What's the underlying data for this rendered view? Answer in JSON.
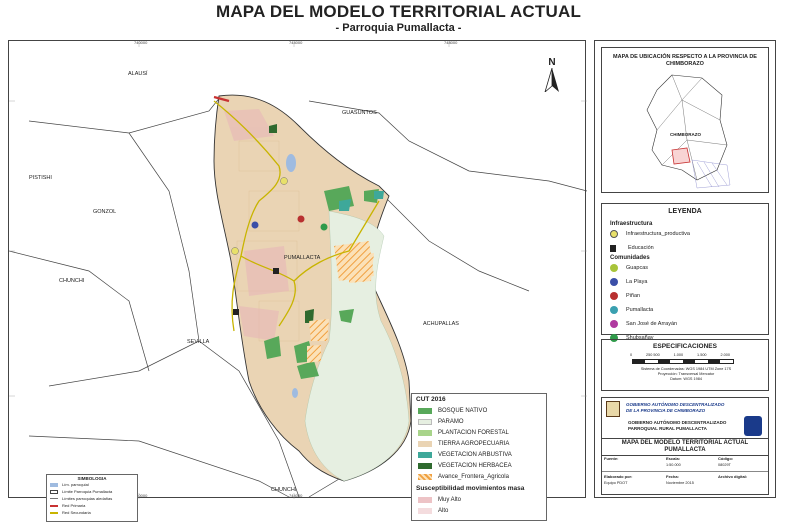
{
  "header": {
    "title": "MAPA DEL MODELO TERRITORIAL ACTUAL",
    "subtitle": "- Parroquia Pumallacta -"
  },
  "map": {
    "places": [
      "ALAUSÍ",
      "GUASUNTOS",
      "GONZOL",
      "CHUNCHI",
      "SEVILLA",
      "ACHUPALLAS",
      "PISTISHI",
      "PUMALLACTA",
      "CHUNCHI"
    ],
    "north_label": "N",
    "top_coords": [
      "740000",
      "744000",
      "748000"
    ],
    "bottom_coords": [
      "740000",
      "744000",
      "748000"
    ],
    "colors": {
      "agro": "#ead4b4",
      "paramo": "#e6efe1",
      "forest": "#58a85a",
      "herb": "#2f6a2f",
      "shrub": "#3ea89a",
      "avance": "#f0a040",
      "mrisk": "#e8b4b8",
      "road": "#c8b400",
      "water": "#9fbbe0"
    }
  },
  "cut": {
    "title": "CUT 2016",
    "items": [
      "BOSQUE NATIVO",
      "PARAMO",
      "PLANTACION FORESTAL",
      "TIERRA AGROPECUARIA",
      "VEGETACION ARBUSTIVA",
      "VEGETACION HERBACEA",
      "Avance_Frontera_Agricola"
    ],
    "susc_title": "Susceptibilidad movimientos masa",
    "susc_items": [
      "Muy Alto",
      "Alto"
    ]
  },
  "simbologia": {
    "title": "SIMBOLOGIA",
    "items": [
      "Lím. parroquial",
      "Límite Parroquia Pumallacta",
      "Límites parroquias aledañas",
      "Red Primaria",
      "Red Secundaria"
    ]
  },
  "location_map": {
    "title": "MAPA DE UBICACIÓN RESPECTO A LA PROVINCIA DE CHIMBORAZO",
    "label": "CHIMBORAZO"
  },
  "leyenda": {
    "title": "LEYENDA",
    "infra_title": "Infraestructura",
    "infra_item": "Infraestructura_productiva",
    "edu_item": "Educación",
    "com_title": "Comunidades",
    "communities": [
      {
        "name": "Guapcas",
        "color": "#a8c43a"
      },
      {
        "name": "La Playa",
        "color": "#3b4fa8"
      },
      {
        "name": "Piñan",
        "color": "#b83030"
      },
      {
        "name": "Pumallacta",
        "color": "#3aa0b0"
      },
      {
        "name": "San José de Arrayán",
        "color": "#b03aa0"
      },
      {
        "name": "Shubsañay",
        "color": "#2f9a4a"
      }
    ]
  },
  "especificaciones": {
    "title": "ESPECIFICACIONES",
    "scale_ticks": [
      "0",
      "250 500",
      "1.000",
      "1.500",
      "2.000"
    ],
    "lines": [
      "Sistema de Coordenadas: WGS 1984 UTM Zone 17S",
      "Proyección: Transversal Mercator",
      "Datum: WGS 1984"
    ]
  },
  "institution": {
    "line1": "GOBIERNO AUTÓNOMO DESCENTRALIZADO",
    "line2": "DE LA PROVINCIA DE CHIMBORAZO",
    "line3": "GOBIERNO AUTÓNOMO DESCENTRALIZADO",
    "line4": "PARROQUIAL RURAL PUMALLACTA",
    "map_title": "MAPA DEL MODELO TERRITORIAL ACTUAL",
    "map_sub": "PUMALLACTA"
  },
  "info": {
    "fuente_lbl": "Fuente:",
    "escala_lbl": "Escala:",
    "codigo_lbl": "Código:",
    "escala_val": "1:50.000",
    "codigo_val": "08029T",
    "elab_lbl": "Elaborado por:",
    "fecha_lbl": "Fecha:",
    "archivo_lbl": "Archivo digital:",
    "elab_val": "Equipo PDOT",
    "fecha_val": "Noviembre 2015"
  }
}
